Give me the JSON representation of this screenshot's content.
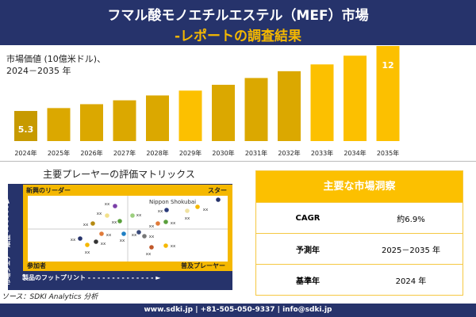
{
  "header": {
    "title": "フマル酸モノエチルエステル（MEF）市場",
    "subtitle": "-レポートの調査結果"
  },
  "chart_data": {
    "type": "bar",
    "ylabel": "市場価値 (10億米ドル)、",
    "period": "2024－2035 年",
    "categories": [
      "2024年",
      "2025年",
      "2026年",
      "2027年",
      "2028年",
      "2029年",
      "2030年",
      "2031年",
      "2032年",
      "2033年",
      "2034年",
      "2035年"
    ],
    "values": [
      5.3,
      5.6,
      6.0,
      6.4,
      6.9,
      7.4,
      8.0,
      8.7,
      9.4,
      10.1,
      11.0,
      12
    ],
    "data_labels": {
      "0": "5.3",
      "11": "12"
    },
    "colors": {
      "dark": "#c79a00",
      "mid": "#dba800",
      "bright": "#fcc000"
    },
    "grid": false
  },
  "matrix": {
    "title": "主要プレーヤーの評価マトリックス",
    "quadrants": {
      "top_left": "新興のリーダー",
      "top_right": "スター",
      "bottom_left": "参加者",
      "bottom_right": "普及プレーヤー"
    },
    "x_axis": "製品のフットプリント",
    "y_axis": "市場シェア・順位",
    "highlight": "Nippon Shokubai",
    "point_label": "xx",
    "colors": [
      "#7b3fa8",
      "#f2e08a",
      "#b58a12",
      "#5aa03c",
      "#9ccf7e",
      "#2a3a7a",
      "#f0e2a0",
      "#f5b800",
      "#26336b",
      "#e07b3a",
      "#5aa03c",
      "#e07b3a",
      "#1f7fc4",
      "#26336b",
      "#f5b800",
      "#333333",
      "#3a4a7a",
      "#777777",
      "#c0582a",
      "#f5b800"
    ]
  },
  "source": "ソース：SDKI Analytics 分析",
  "insights": {
    "title": "主要な市場洞察",
    "rows": [
      {
        "k": "CAGR",
        "v": "約6.9%"
      },
      {
        "k": "予測年",
        "v": "2025－2035 年"
      },
      {
        "k": "基準年",
        "v": "2024 年"
      }
    ]
  },
  "footer": "www.sdki.jp | +81-505-050-9337 | info@sdki.jp"
}
